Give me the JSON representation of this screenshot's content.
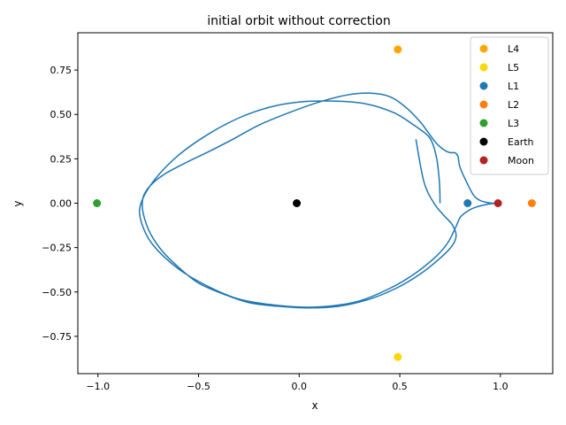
{
  "chart_data": {
    "type": "scatter",
    "title": "initial orbit without correction",
    "xlabel": "x",
    "ylabel": "y",
    "xlim": [
      -1.1,
      1.26
    ],
    "ylim": [
      -0.96,
      0.96
    ],
    "x_ticks": [
      -1.0,
      -0.5,
      0.0,
      0.5,
      1.0
    ],
    "x_tick_labels": [
      "−1.0",
      "−0.5",
      "0.0",
      "0.5",
      "1.0"
    ],
    "y_ticks": [
      -0.75,
      -0.5,
      -0.25,
      0.0,
      0.25,
      0.5,
      0.75
    ],
    "y_tick_labels": [
      "−0.75",
      "−0.50",
      "−0.25",
      "0.00",
      "0.25",
      "0.50",
      "0.75"
    ],
    "grid": false,
    "legend_position": "top-right",
    "orbit": {
      "color": "#1f77b4",
      "x": [
        0.7,
        0.698,
        0.69,
        0.682,
        0.665,
        0.64,
        0.57,
        0.47,
        0.33,
        0.18,
        0.0,
        -0.15,
        -0.3,
        -0.45,
        -0.6,
        -0.72,
        -0.786,
        -0.786,
        -0.73,
        -0.6,
        -0.45,
        -0.3,
        -0.15,
        0.0,
        0.15,
        0.3,
        0.45,
        0.57,
        0.68,
        0.74,
        0.78,
        0.8,
        0.83,
        0.86,
        0.9,
        0.94,
        0.97,
        0.99,
        0.96,
        0.93,
        0.9,
        0.87,
        0.84,
        0.8,
        0.79,
        0.78,
        0.77,
        0.75,
        0.72,
        0.68,
        0.64,
        0.6,
        0.53,
        0.45,
        0.35,
        0.24,
        0.1,
        -0.05,
        -0.2,
        -0.33,
        -0.45,
        -0.56,
        -0.66,
        -0.73,
        -0.77,
        -0.78,
        -0.77,
        -0.74,
        -0.68,
        -0.6,
        -0.5,
        -0.38,
        -0.25,
        -0.11,
        0.05,
        0.2,
        0.35,
        0.48,
        0.6,
        0.7,
        0.76,
        0.78,
        0.76,
        0.72,
        0.67,
        0.62,
        0.58
      ],
      "y": [
        0.0,
        0.1,
        0.2,
        0.26,
        0.33,
        0.38,
        0.44,
        0.51,
        0.56,
        0.575,
        0.57,
        0.54,
        0.48,
        0.39,
        0.27,
        0.13,
        0.0,
        -0.1,
        -0.23,
        -0.37,
        -0.47,
        -0.54,
        -0.57,
        -0.585,
        -0.58,
        -0.55,
        -0.48,
        -0.4,
        -0.3,
        -0.22,
        -0.13,
        -0.08,
        -0.05,
        -0.03,
        -0.015,
        -0.005,
        -0.001,
        0.0,
        0.0,
        0.005,
        0.015,
        0.04,
        0.1,
        0.2,
        0.26,
        0.28,
        0.285,
        0.285,
        0.3,
        0.34,
        0.4,
        0.46,
        0.54,
        0.6,
        0.62,
        0.61,
        0.57,
        0.51,
        0.44,
        0.36,
        0.29,
        0.23,
        0.17,
        0.11,
        0.05,
        -0.01,
        -0.08,
        -0.17,
        -0.27,
        -0.36,
        -0.45,
        -0.51,
        -0.56,
        -0.58,
        -0.59,
        -0.58,
        -0.54,
        -0.48,
        -0.4,
        -0.31,
        -0.24,
        -0.18,
        -0.12,
        -0.07,
        0.0,
        0.12,
        0.36
      ]
    },
    "points": [
      {
        "name": "L4",
        "x": 0.49,
        "y": 0.866,
        "color": "#ffa500"
      },
      {
        "name": "L5",
        "x": 0.49,
        "y": -0.866,
        "color": "#ffd700"
      },
      {
        "name": "L1",
        "x": 0.837,
        "y": 0.0,
        "color": "#1f77b4"
      },
      {
        "name": "L2",
        "x": 1.156,
        "y": 0.0,
        "color": "#ff7f0e"
      },
      {
        "name": "L3",
        "x": -1.005,
        "y": 0.0,
        "color": "#2ca02c"
      },
      {
        "name": "Earth",
        "x": -0.012,
        "y": 0.0,
        "color": "#000000"
      },
      {
        "name": "Moon",
        "x": 0.988,
        "y": 0.0,
        "color": "#b22222"
      }
    ]
  }
}
